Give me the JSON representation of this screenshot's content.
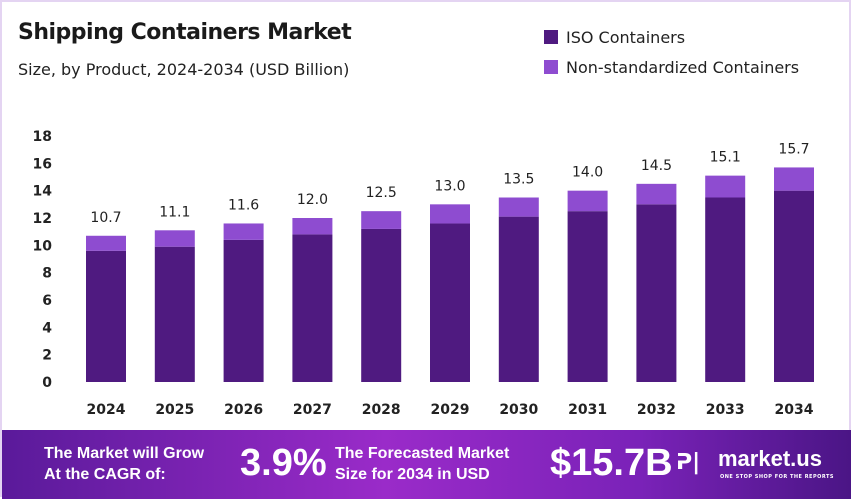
{
  "chart_data": {
    "type": "bar",
    "stacked": true,
    "title": "Shipping Containers Market",
    "subtitle": "Size, by Product, 2024-2034 (USD Billion)",
    "categories": [
      "2024",
      "2025",
      "2026",
      "2027",
      "2028",
      "2029",
      "2030",
      "2031",
      "2032",
      "2033",
      "2034"
    ],
    "series": [
      {
        "name": "ISO Containers",
        "color": "#4f1a80",
        "values": [
          9.6,
          9.9,
          10.4,
          10.8,
          11.2,
          11.6,
          12.1,
          12.5,
          13.0,
          13.5,
          14.0
        ]
      },
      {
        "name": "Non-standardized Containers",
        "color": "#8e4cd0",
        "values": [
          1.1,
          1.2,
          1.2,
          1.2,
          1.3,
          1.4,
          1.4,
          1.5,
          1.5,
          1.6,
          1.7
        ]
      }
    ],
    "totals": [
      "10.7",
      "11.1",
      "11.6",
      "12.0",
      "12.5",
      "13.0",
      "13.5",
      "14.0",
      "14.5",
      "15.1",
      "15.7"
    ],
    "yticks": [
      0,
      2,
      4,
      6,
      8,
      10,
      12,
      14,
      16,
      18
    ],
    "ylim": [
      0,
      18
    ],
    "grid": false,
    "legend_position": "top-right"
  },
  "footer": {
    "cagr_text_1": "The Market will Grow",
    "cagr_text_2": "At the CAGR of:",
    "cagr_value": "3.9%",
    "forecast_text_1": "The Forecasted Market",
    "forecast_text_2": "Size for 2034 in USD",
    "forecast_value": "$15.7B",
    "brand": "market.us",
    "tagline": "ONE STOP SHOP FOR THE REPORTS"
  }
}
